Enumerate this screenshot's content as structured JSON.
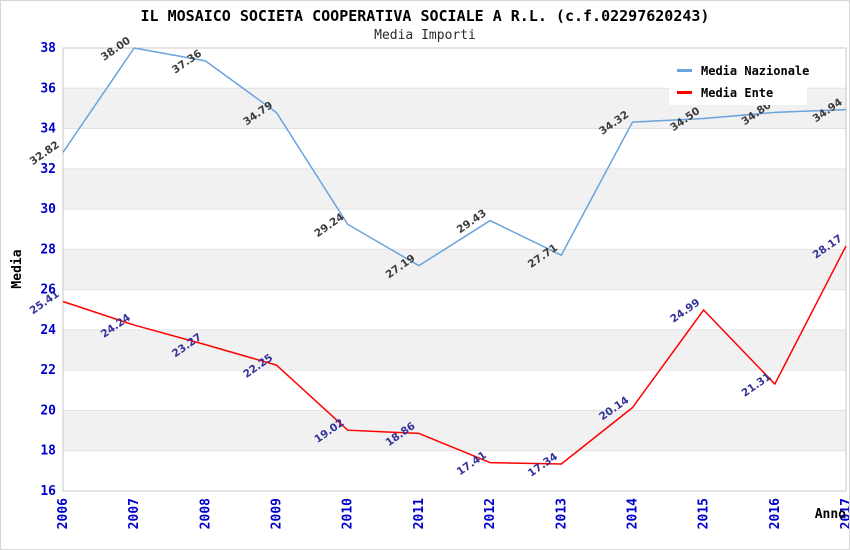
{
  "page": {
    "title": "IL MOSAICO SOCIETA COOPERATIVA SOCIALE A R.L. (c.f.02297620243)",
    "subtitle": "Media Importi"
  },
  "chart_data": {
    "type": "line",
    "title": "IL MOSAICO SOCIETA COOPERATIVA SOCIALE A R.L. (c.f.02297620243)",
    "subtitle": "Media Importi",
    "xlabel": "Anno",
    "ylabel": "Media",
    "categories": [
      "2006",
      "2007",
      "2008",
      "2009",
      "2010",
      "2011",
      "2012",
      "2013",
      "2014",
      "2015",
      "2016",
      "2017"
    ],
    "y_ticks": [
      38,
      36,
      34,
      32,
      30,
      28,
      26,
      24,
      22,
      20,
      18,
      16
    ],
    "ylim": [
      16,
      38
    ],
    "grid": "alternating-horizontal-bands",
    "legend_position": "top-right-inside",
    "series": [
      {
        "name": "Media Nazionale",
        "color": "#6BA3DC",
        "label_color": "#3C3C3C",
        "values": [
          32.82,
          38.0,
          37.36,
          34.79,
          29.24,
          27.19,
          29.43,
          27.71,
          34.32,
          34.5,
          34.8,
          34.94
        ],
        "labels": [
          "32.82",
          "38.00",
          "37.36",
          "34.79",
          "29.24",
          "27.19",
          "29.43",
          "27.71",
          "34.32",
          "34.50",
          "34.80",
          "34.94"
        ]
      },
      {
        "name": "Media Ente",
        "color": "#FF0000",
        "label_color": "#333399",
        "values": [
          25.41,
          24.24,
          23.27,
          22.25,
          19.02,
          18.86,
          17.41,
          17.34,
          20.14,
          24.99,
          21.31,
          28.17
        ],
        "labels": [
          "25.41",
          "24.24",
          "23.27",
          "22.25",
          "19.02",
          "18.86",
          "17.41",
          "17.34",
          "20.14",
          "24.99",
          "21.31",
          "28.17"
        ]
      }
    ],
    "colors": {
      "axis_tick_text": "#0000CC",
      "band_gray": "#F1F1F1",
      "grid_line": "#E2E2E2",
      "plot_frame": "#C9C9C9",
      "title_text": "#000000",
      "subtitle_text": "#2B2B2B"
    }
  }
}
